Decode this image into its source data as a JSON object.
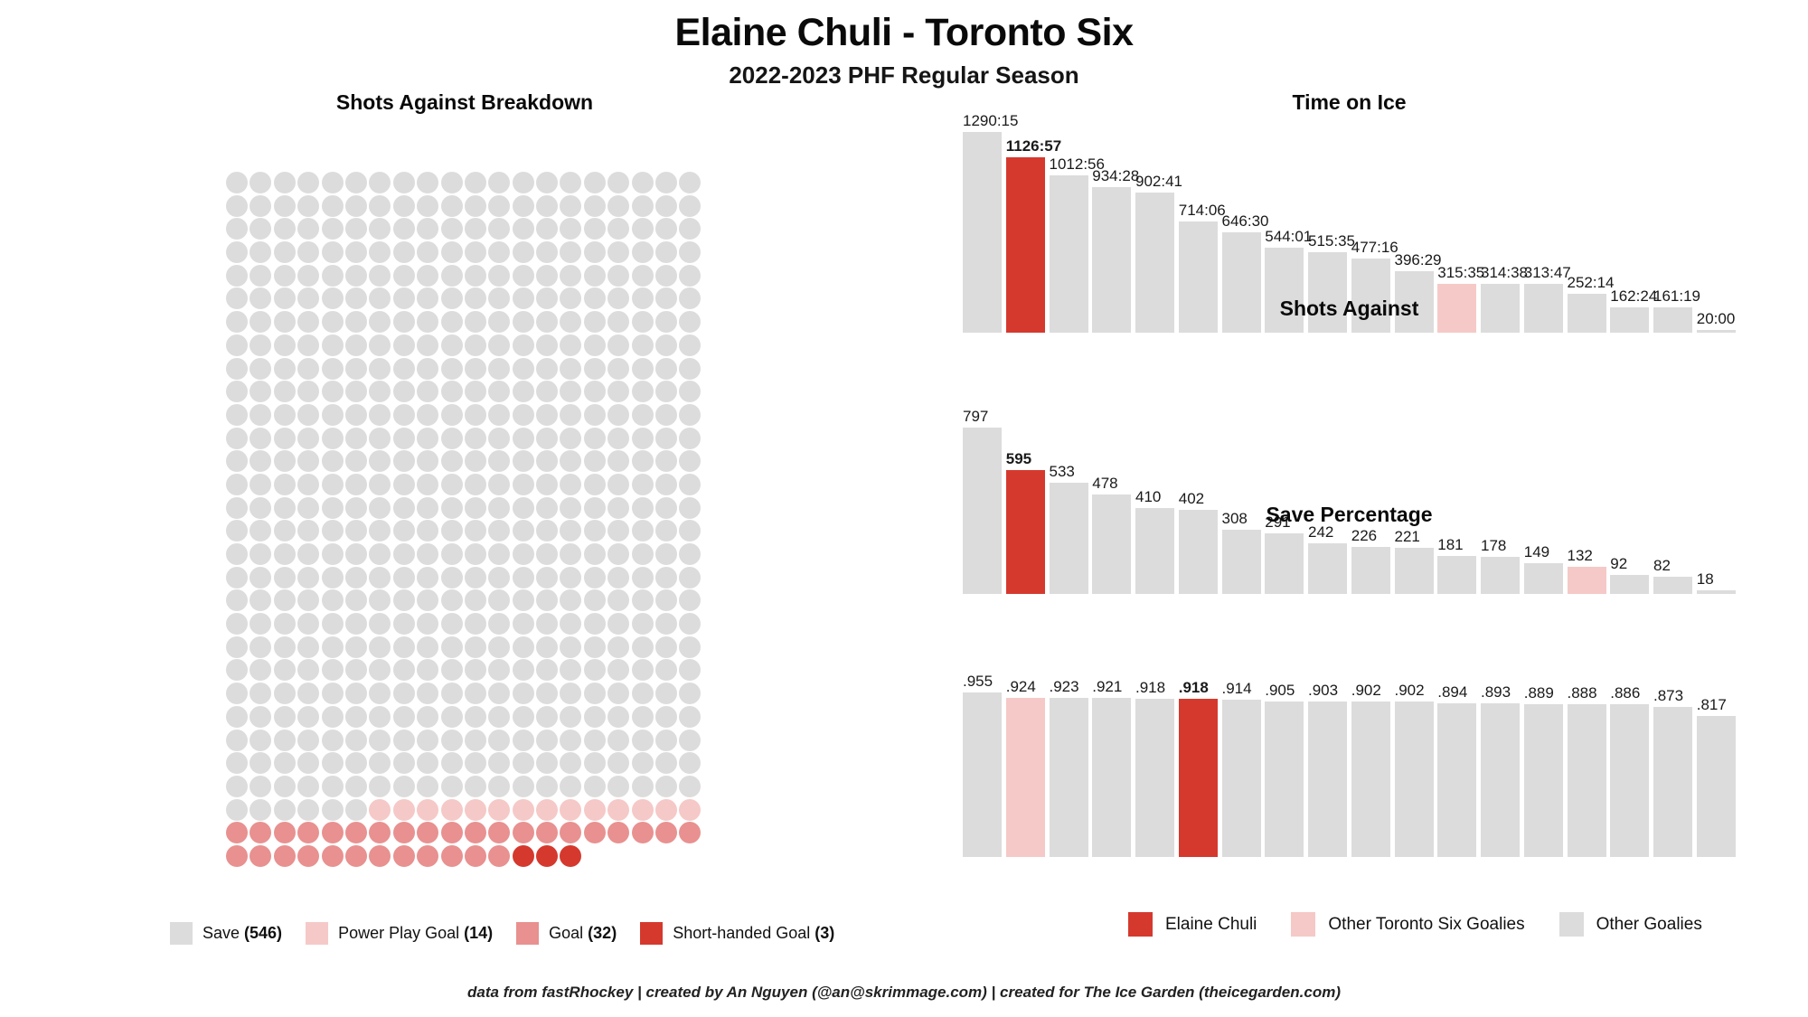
{
  "header": {
    "title": "Elaine Chuli - Toronto Six",
    "subtitle": "2022-2023 PHF Regular Season"
  },
  "footer": "data from fastRhockey | created by An Nguyen (@an@skrimmage.com) | created for The Ice Garden (theicegarden.com)",
  "colors": {
    "elaine_red": "#d5392e",
    "toronto_pink": "#f5c9c7",
    "goal_salmon": "#e89190",
    "other_gray": "#dcdcdc"
  },
  "chart_data": [
    {
      "type": "waffle",
      "title": "Shots Against Breakdown",
      "columns": 20,
      "categories": [
        "Save",
        "Power Play Goal",
        "Goal",
        "Short-handed Goal"
      ],
      "values": [
        546,
        14,
        32,
        3
      ],
      "colors_key": [
        "other_gray",
        "toronto_pink",
        "goal_salmon",
        "elaine_red"
      ],
      "total": 595
    },
    {
      "type": "bar",
      "title": "Time on Ice",
      "labels": [
        "1290:15",
        "1126:57",
        "1012:56",
        "934:28",
        "902:41",
        "714:06",
        "646:30",
        "544:01",
        "515:35",
        "477:16",
        "396:29",
        "315:35",
        "314:38",
        "313:47",
        "252:14",
        "162:24",
        "161:19",
        "20:00"
      ],
      "values": [
        1290.25,
        1126.95,
        1012.93,
        934.47,
        902.68,
        714.1,
        646.5,
        544.02,
        515.58,
        477.27,
        396.48,
        315.58,
        314.63,
        313.78,
        252.23,
        162.4,
        161.32,
        20.0
      ],
      "elaine_index": 1,
      "toronto_pink_index": 11,
      "bold_index": 1,
      "ylim": [
        0,
        1290.25
      ],
      "grid": false,
      "legend_position": "bottom"
    },
    {
      "type": "bar",
      "title": "Shots Against",
      "labels": [
        "797",
        "595",
        "533",
        "478",
        "410",
        "402",
        "308",
        "291",
        "242",
        "226",
        "221",
        "181",
        "178",
        "149",
        "132",
        "92",
        "82",
        "18"
      ],
      "values": [
        797,
        595,
        533,
        478,
        410,
        402,
        308,
        291,
        242,
        226,
        221,
        181,
        178,
        149,
        132,
        92,
        82,
        18
      ],
      "elaine_index": 1,
      "toronto_pink_index": 14,
      "bold_index": 1,
      "ylim": [
        0,
        797
      ],
      "grid": false,
      "legend_position": "bottom"
    },
    {
      "type": "bar",
      "title": "Save Percentage",
      "labels": [
        ".955",
        ".924",
        ".923",
        ".921",
        ".918",
        ".918",
        ".914",
        ".905",
        ".903",
        ".902",
        ".902",
        ".894",
        ".893",
        ".889",
        ".888",
        ".886",
        ".873",
        ".817"
      ],
      "values": [
        0.955,
        0.924,
        0.923,
        0.921,
        0.918,
        0.918,
        0.914,
        0.905,
        0.903,
        0.902,
        0.902,
        0.894,
        0.893,
        0.889,
        0.888,
        0.886,
        0.873,
        0.817
      ],
      "elaine_index": 5,
      "toronto_pink_index": 1,
      "bold_index": 5,
      "ylim": [
        0,
        0.955
      ],
      "grid": false,
      "legend_position": "bottom"
    }
  ],
  "legend_shots": {
    "items": [
      {
        "label": "Save",
        "count": "(546)",
        "color_key": "other_gray"
      },
      {
        "label": "Power Play Goal",
        "count": "(14)",
        "color_key": "toronto_pink"
      },
      {
        "label": "Goal",
        "count": "(32)",
        "color_key": "goal_salmon"
      },
      {
        "label": "Short-handed Goal",
        "count": "(3)",
        "color_key": "elaine_red"
      }
    ]
  },
  "legend_goalies": {
    "items": [
      {
        "label": "Elaine Chuli",
        "color_key": "elaine_red"
      },
      {
        "label": "Other Toronto Six Goalies",
        "color_key": "toronto_pink"
      },
      {
        "label": "Other Goalies",
        "color_key": "other_gray"
      }
    ]
  }
}
